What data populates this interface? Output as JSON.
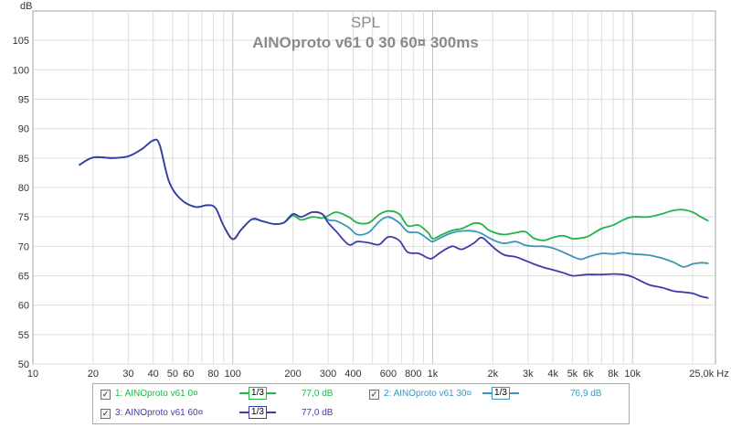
{
  "chart_data": {
    "type": "line",
    "title": "SPL",
    "subtitle": "AINOproto v61 0 30 60¤ 300ms",
    "x_unit": "Hz",
    "y_unit": "dB",
    "x_scale": "log",
    "xlim": [
      10,
      26000
    ],
    "ylim": [
      50,
      110
    ],
    "grid": true,
    "x_ticks": [
      {
        "value": 10,
        "label": "10"
      },
      {
        "value": 20,
        "label": "20"
      },
      {
        "value": 30,
        "label": "30"
      },
      {
        "value": 40,
        "label": "40"
      },
      {
        "value": 50,
        "label": "50"
      },
      {
        "value": 60,
        "label": "60"
      },
      {
        "value": 80,
        "label": "80"
      },
      {
        "value": 100,
        "label": "100"
      },
      {
        "value": 200,
        "label": "200"
      },
      {
        "value": 300,
        "label": "300"
      },
      {
        "value": 400,
        "label": "400"
      },
      {
        "value": 600,
        "label": "600"
      },
      {
        "value": 800,
        "label": "800"
      },
      {
        "value": 1000,
        "label": "1k"
      },
      {
        "value": 2000,
        "label": "2k"
      },
      {
        "value": 3000,
        "label": "3k"
      },
      {
        "value": 4000,
        "label": "4k"
      },
      {
        "value": 5000,
        "label": "5k"
      },
      {
        "value": 6000,
        "label": "6k"
      },
      {
        "value": 8000,
        "label": "8k"
      },
      {
        "value": 10000,
        "label": "10k"
      },
      {
        "value": 25000,
        "label": "25,0k Hz"
      }
    ],
    "y_ticks": [
      50,
      55,
      60,
      65,
      70,
      75,
      80,
      85,
      90,
      95,
      100,
      105
    ],
    "series": [
      {
        "name": "1: AINOproto v61 0¤",
        "color": "#22b34a",
        "smoothing": "1/3",
        "level": "77,0 dB",
        "points": [
          [
            17,
            83.8
          ],
          [
            20,
            85.1
          ],
          [
            25,
            85.0
          ],
          [
            30,
            85.3
          ],
          [
            35,
            86.5
          ],
          [
            40,
            88.0
          ],
          [
            43,
            87.3
          ],
          [
            48,
            81.0
          ],
          [
            55,
            78.0
          ],
          [
            65,
            76.7
          ],
          [
            75,
            77.0
          ],
          [
            82,
            76.5
          ],
          [
            90,
            73.5
          ],
          [
            100,
            71.2
          ],
          [
            110,
            72.8
          ],
          [
            125,
            74.6
          ],
          [
            140,
            74.3
          ],
          [
            160,
            73.8
          ],
          [
            180,
            74.0
          ],
          [
            200,
            75.2
          ],
          [
            220,
            74.5
          ],
          [
            250,
            75.0
          ],
          [
            280,
            74.8
          ],
          [
            300,
            75.2
          ],
          [
            330,
            75.8
          ],
          [
            380,
            75.0
          ],
          [
            420,
            74.0
          ],
          [
            480,
            74.0
          ],
          [
            540,
            75.4
          ],
          [
            600,
            76.0
          ],
          [
            680,
            75.5
          ],
          [
            750,
            73.5
          ],
          [
            850,
            73.6
          ],
          [
            950,
            72.3
          ],
          [
            1000,
            71.3
          ],
          [
            1100,
            71.9
          ],
          [
            1250,
            72.7
          ],
          [
            1400,
            73.0
          ],
          [
            1600,
            73.9
          ],
          [
            1750,
            73.8
          ],
          [
            1900,
            72.8
          ],
          [
            2100,
            72.2
          ],
          [
            2300,
            72.0
          ],
          [
            2600,
            72.3
          ],
          [
            2900,
            72.5
          ],
          [
            3200,
            71.4
          ],
          [
            3600,
            71.0
          ],
          [
            4000,
            71.5
          ],
          [
            4500,
            71.8
          ],
          [
            5000,
            71.3
          ],
          [
            5500,
            71.4
          ],
          [
            6000,
            71.7
          ],
          [
            7000,
            73.0
          ],
          [
            8000,
            73.6
          ],
          [
            9000,
            74.5
          ],
          [
            10000,
            75.0
          ],
          [
            12000,
            75.0
          ],
          [
            14000,
            75.5
          ],
          [
            16000,
            76.1
          ],
          [
            18000,
            76.2
          ],
          [
            20000,
            75.8
          ],
          [
            22000,
            75.0
          ],
          [
            24000,
            74.3
          ]
        ]
      },
      {
        "name": "2: AINOproto v61 30¤",
        "color": "#3a96b8",
        "smoothing": "1/3",
        "level": "76,9 dB",
        "points": [
          [
            17,
            83.8
          ],
          [
            20,
            85.1
          ],
          [
            25,
            85.0
          ],
          [
            30,
            85.3
          ],
          [
            35,
            86.5
          ],
          [
            40,
            88.0
          ],
          [
            43,
            87.3
          ],
          [
            48,
            81.0
          ],
          [
            55,
            78.0
          ],
          [
            65,
            76.7
          ],
          [
            75,
            77.0
          ],
          [
            82,
            76.5
          ],
          [
            90,
            73.5
          ],
          [
            100,
            71.2
          ],
          [
            110,
            72.8
          ],
          [
            125,
            74.6
          ],
          [
            140,
            74.3
          ],
          [
            160,
            73.8
          ],
          [
            180,
            74.0
          ],
          [
            200,
            75.5
          ],
          [
            220,
            75.0
          ],
          [
            250,
            75.8
          ],
          [
            280,
            75.5
          ],
          [
            300,
            74.5
          ],
          [
            330,
            74.3
          ],
          [
            380,
            73.2
          ],
          [
            420,
            72.0
          ],
          [
            480,
            72.4
          ],
          [
            540,
            74.2
          ],
          [
            600,
            75.0
          ],
          [
            680,
            74.0
          ],
          [
            750,
            72.5
          ],
          [
            850,
            72.3
          ],
          [
            950,
            71.2
          ],
          [
            1000,
            70.8
          ],
          [
            1100,
            71.5
          ],
          [
            1250,
            72.3
          ],
          [
            1400,
            72.6
          ],
          [
            1600,
            72.6
          ],
          [
            1750,
            72.2
          ],
          [
            1900,
            71.5
          ],
          [
            2100,
            70.8
          ],
          [
            2300,
            70.5
          ],
          [
            2600,
            70.8
          ],
          [
            2900,
            70.2
          ],
          [
            3200,
            70.0
          ],
          [
            3600,
            70.0
          ],
          [
            4000,
            69.7
          ],
          [
            4500,
            69.0
          ],
          [
            5000,
            68.3
          ],
          [
            5500,
            67.8
          ],
          [
            6000,
            68.2
          ],
          [
            7000,
            68.8
          ],
          [
            8000,
            68.7
          ],
          [
            9000,
            68.9
          ],
          [
            10000,
            68.7
          ],
          [
            12000,
            68.5
          ],
          [
            14000,
            68.0
          ],
          [
            16000,
            67.3
          ],
          [
            18000,
            66.5
          ],
          [
            20000,
            67.0
          ],
          [
            22000,
            67.2
          ],
          [
            24000,
            67.1
          ]
        ]
      },
      {
        "name": "3: AINOproto v61 60¤",
        "color": "#3d3da8",
        "smoothing": "1/3",
        "level": "77,0 dB",
        "points": [
          [
            17,
            83.8
          ],
          [
            20,
            85.1
          ],
          [
            25,
            85.0
          ],
          [
            30,
            85.3
          ],
          [
            35,
            86.5
          ],
          [
            40,
            88.0
          ],
          [
            43,
            87.3
          ],
          [
            48,
            81.0
          ],
          [
            55,
            78.0
          ],
          [
            65,
            76.7
          ],
          [
            75,
            77.0
          ],
          [
            82,
            76.5
          ],
          [
            90,
            73.5
          ],
          [
            100,
            71.2
          ],
          [
            110,
            72.8
          ],
          [
            125,
            74.6
          ],
          [
            140,
            74.3
          ],
          [
            160,
            73.8
          ],
          [
            180,
            74.0
          ],
          [
            200,
            75.5
          ],
          [
            220,
            75.0
          ],
          [
            250,
            75.8
          ],
          [
            280,
            75.5
          ],
          [
            300,
            74.0
          ],
          [
            330,
            72.5
          ],
          [
            380,
            70.3
          ],
          [
            420,
            70.8
          ],
          [
            480,
            70.6
          ],
          [
            540,
            70.3
          ],
          [
            600,
            71.6
          ],
          [
            680,
            71.0
          ],
          [
            750,
            69.0
          ],
          [
            850,
            68.8
          ],
          [
            950,
            68.0
          ],
          [
            1000,
            68.0
          ],
          [
            1100,
            69.0
          ],
          [
            1250,
            70.0
          ],
          [
            1400,
            69.5
          ],
          [
            1600,
            70.5
          ],
          [
            1750,
            71.5
          ],
          [
            1900,
            70.6
          ],
          [
            2100,
            69.3
          ],
          [
            2300,
            68.5
          ],
          [
            2600,
            68.2
          ],
          [
            2900,
            67.6
          ],
          [
            3200,
            67.0
          ],
          [
            3600,
            66.4
          ],
          [
            4000,
            66.0
          ],
          [
            4500,
            65.5
          ],
          [
            5000,
            65.0
          ],
          [
            5500,
            65.1
          ],
          [
            6000,
            65.2
          ],
          [
            7000,
            65.2
          ],
          [
            8000,
            65.3
          ],
          [
            9000,
            65.2
          ],
          [
            10000,
            64.8
          ],
          [
            12000,
            63.5
          ],
          [
            14000,
            63.0
          ],
          [
            16000,
            62.4
          ],
          [
            18000,
            62.2
          ],
          [
            20000,
            62.0
          ],
          [
            22000,
            61.5
          ],
          [
            24000,
            61.2
          ]
        ]
      }
    ],
    "legend_position": "bottom"
  },
  "axis": {
    "y_unit_label": "dB"
  }
}
